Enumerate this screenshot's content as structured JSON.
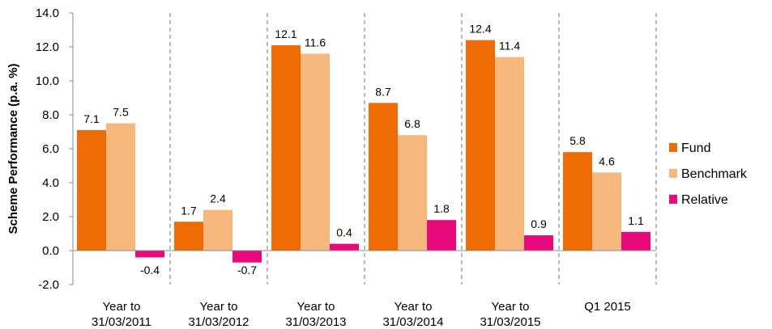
{
  "chart_data": {
    "type": "bar",
    "title": "",
    "xlabel": "",
    "ylabel": "Scheme Performance  (p.a. %)",
    "ylim": [
      -2.0,
      14.0
    ],
    "y_ticks": [
      "14.0",
      "12.0",
      "10.0",
      "8.0",
      "6.0",
      "4.0",
      "2.0",
      "0.0",
      "-2.0"
    ],
    "grid": false,
    "legend_position": "right",
    "categories": [
      [
        "Year to",
        "31/03/2011"
      ],
      [
        "Year to",
        "31/03/2012"
      ],
      [
        "Year to",
        "31/03/2013"
      ],
      [
        "Year to",
        "31/03/2014"
      ],
      [
        "Year to",
        "31/03/2015"
      ],
      [
        "Q1 2015"
      ]
    ],
    "series": [
      {
        "name": "Fund",
        "color": "#ED6C05",
        "values": [
          7.1,
          1.7,
          12.1,
          8.7,
          12.4,
          5.8
        ],
        "labels": [
          "7.1",
          "1.7",
          "12.1",
          "8.7",
          "12.4",
          "5.8"
        ]
      },
      {
        "name": "Benchmark",
        "color": "#F7B87E",
        "values": [
          7.5,
          2.4,
          11.6,
          6.8,
          11.4,
          4.6
        ],
        "labels": [
          "7.5",
          "2.4",
          "11.6",
          "6.8",
          "11.4",
          "4.6"
        ]
      },
      {
        "name": "Relative",
        "color": "#E8097A",
        "values": [
          -0.4,
          -0.7,
          0.4,
          1.8,
          0.9,
          1.1
        ],
        "labels": [
          "-0.4",
          "-0.7",
          "0.4",
          "1.8",
          "0.9",
          "1.1"
        ]
      }
    ]
  }
}
